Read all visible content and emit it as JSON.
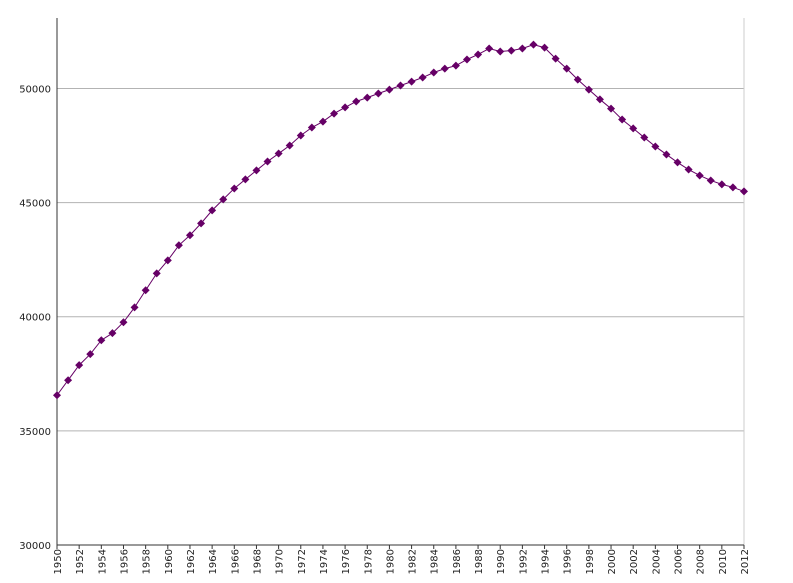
{
  "chart_data": {
    "type": "line",
    "x": [
      1950,
      1951,
      1952,
      1953,
      1954,
      1955,
      1956,
      1957,
      1958,
      1959,
      1960,
      1961,
      1962,
      1963,
      1964,
      1965,
      1966,
      1967,
      1968,
      1969,
      1970,
      1971,
      1972,
      1973,
      1974,
      1975,
      1976,
      1977,
      1978,
      1979,
      1980,
      1981,
      1982,
      1983,
      1984,
      1985,
      1986,
      1987,
      1988,
      1989,
      1990,
      1991,
      1992,
      1993,
      1994,
      1995,
      1996,
      1997,
      1998,
      1999,
      2000,
      2001,
      2002,
      2003,
      2004,
      2005,
      2006,
      2007,
      2008,
      2009,
      2010,
      2011,
      2012
    ],
    "series": [
      {
        "color": "#660066",
        "values": [
          36560,
          37220,
          37880,
          38360,
          38970,
          39280,
          39760,
          40410,
          41160,
          41900,
          42470,
          43130,
          43570,
          44090,
          44660,
          45140,
          45620,
          46020,
          46410,
          46800,
          47150,
          47500,
          47940,
          48290,
          48550,
          48900,
          49170,
          49430,
          49600,
          49780,
          49950,
          50130,
          50300,
          50480,
          50700,
          50870,
          51000,
          51270,
          51490,
          51750,
          51620,
          51660,
          51750,
          51920,
          51790,
          51310,
          50870,
          50390,
          49950,
          49520,
          49120,
          48640,
          48250,
          47850,
          47460,
          47110,
          46760,
          46450,
          46190,
          45970,
          45800,
          45670,
          45490
        ]
      }
    ],
    "xlim": [
      1950,
      2012
    ],
    "xticks": [
      1950,
      1952,
      1954,
      1956,
      1958,
      1960,
      1962,
      1964,
      1966,
      1968,
      1970,
      1972,
      1974,
      1976,
      1978,
      1980,
      1982,
      1984,
      1986,
      1988,
      1990,
      1992,
      1994,
      1996,
      1998,
      2000,
      2002,
      2004,
      2006,
      2008,
      2010,
      2012
    ],
    "ylim": [
      30000,
      53000
    ],
    "yticks": [
      30000,
      35000,
      40000,
      45000,
      50000
    ],
    "grid": true
  }
}
